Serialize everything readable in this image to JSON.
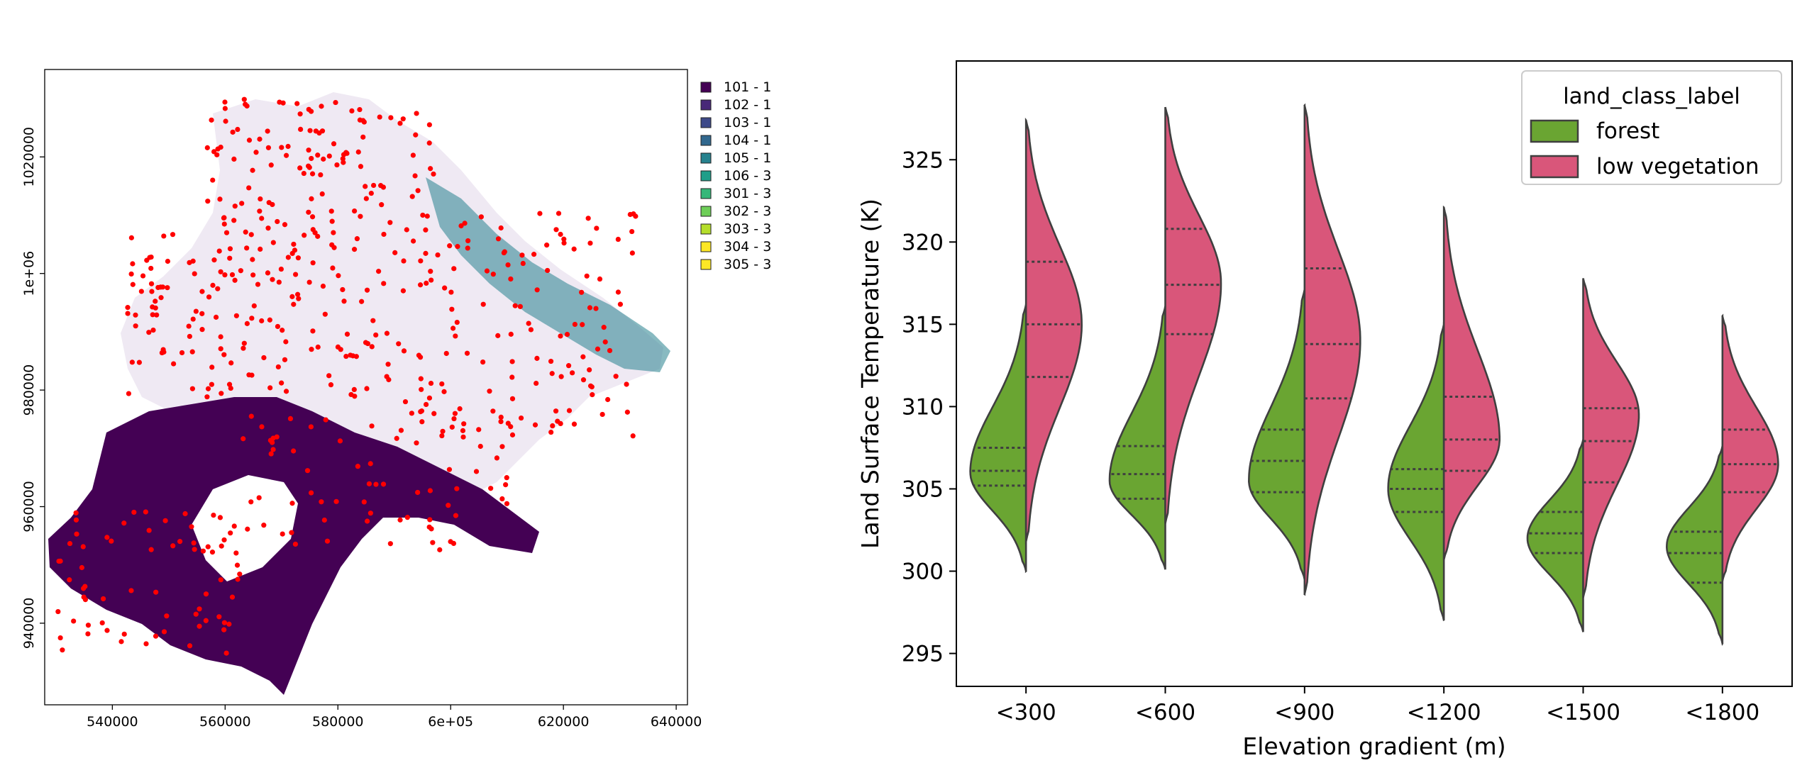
{
  "chart_data": [
    {
      "type": "map",
      "title": "",
      "xlabel": "",
      "ylabel": "",
      "x_ticks": [
        "540000",
        "560000",
        "580000",
        "6e+05",
        "620000",
        "640000"
      ],
      "y_ticks": [
        "940000",
        "960000",
        "980000",
        "1e+06",
        "1020000"
      ],
      "xlim": [
        528000,
        642000
      ],
      "ylim": [
        926000,
        1035000
      ],
      "legend_position": "right",
      "legend": [
        {
          "label": "101 - 1",
          "color": "#440154"
        },
        {
          "label": "102 - 1",
          "color": "#482878"
        },
        {
          "label": "103 - 1",
          "color": "#3e4a89"
        },
        {
          "label": "104 - 1",
          "color": "#31688e"
        },
        {
          "label": "105 - 1",
          "color": "#26828e"
        },
        {
          "label": "106 - 3",
          "color": "#1f9e89"
        },
        {
          "label": "301 - 3",
          "color": "#35b779"
        },
        {
          "label": "302 - 3",
          "color": "#6ece58"
        },
        {
          "label": "303 - 3",
          "color": "#b5de2b"
        },
        {
          "label": "304 - 3",
          "color": "#fde725"
        },
        {
          "label": "305 - 3",
          "color": "#fde725"
        }
      ],
      "point_color": "#ff0000"
    },
    {
      "type": "violin",
      "split": true,
      "title": "",
      "xlabel": "Elevation gradient (m)",
      "ylabel": "Land Surface Temperature (K)",
      "categories": [
        "<300",
        "<600",
        "<900",
        "<1200",
        "<1500",
        "<1800"
      ],
      "y_ticks": [
        295,
        300,
        305,
        310,
        315,
        320,
        325
      ],
      "ylim": [
        293,
        331
      ],
      "legend_title": "land_class_label",
      "legend_position": "top-right",
      "series": [
        {
          "name": "forest",
          "color": "#6aa532",
          "min": [
            300.0,
            300.1,
            299.5,
            297.0,
            296.3,
            295.6
          ],
          "max": [
            316.2,
            316.1,
            317.1,
            315.0,
            308.0,
            307.6
          ],
          "q1": [
            305.2,
            304.4,
            304.8,
            303.6,
            301.1,
            299.3
          ],
          "median": [
            306.1,
            305.9,
            306.7,
            305.0,
            302.3,
            301.1
          ],
          "q3": [
            307.5,
            307.6,
            308.6,
            306.2,
            303.6,
            302.4
          ],
          "peak": [
            306.0,
            305.5,
            305.5,
            305.0,
            302.0,
            301.5
          ]
        },
        {
          "name": "low vegetation",
          "color": "#d9567a",
          "min": [
            301.8,
            302.9,
            298.6,
            300.7,
            298.4,
            299.4
          ],
          "max": [
            327.4,
            328.2,
            328.3,
            322.1,
            317.8,
            315.5
          ],
          "q1": [
            311.8,
            314.4,
            310.5,
            306.1,
            305.4,
            304.8
          ],
          "median": [
            315.0,
            317.4,
            313.8,
            308.0,
            307.9,
            306.5
          ],
          "q3": [
            318.8,
            320.8,
            318.4,
            310.6,
            309.9,
            308.6
          ],
          "peak": [
            315.0,
            317.5,
            314.0,
            308.0,
            309.5,
            306.5
          ]
        }
      ]
    }
  ]
}
